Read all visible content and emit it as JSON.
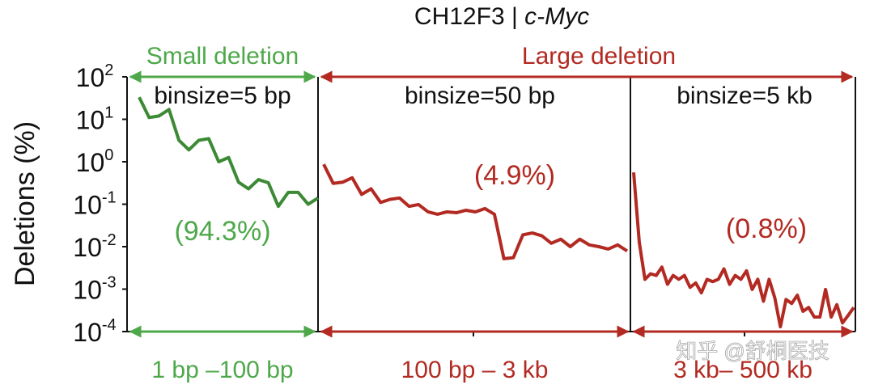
{
  "chart_data": {
    "type": "line",
    "title": "CH12F3 | ",
    "title_italic": "c-Myc",
    "ylabel": "Deletions (%)",
    "yscale": "log",
    "ylim": [
      0.0001,
      100
    ],
    "yticks": [
      {
        "base": "10",
        "exp": "2"
      },
      {
        "base": "10",
        "exp": "1"
      },
      {
        "base": "10",
        "exp": "0"
      },
      {
        "base": "10",
        "exp": "-1"
      },
      {
        "base": "10",
        "exp": "-2"
      },
      {
        "base": "10",
        "exp": "-3"
      },
      {
        "base": "10",
        "exp": "-4"
      }
    ],
    "colors": {
      "small": "#4ea84a",
      "large": "#b22a22",
      "green_line": "#3d8a35"
    },
    "categories_top": {
      "small": "Small deletion",
      "large": "Large deletion"
    },
    "watermark": "知乎 @舒桐医技",
    "panels": [
      {
        "binsize_label": "binsize=5 bp",
        "percent_label": "(94.3%)",
        "range_label": "1 bp –100 bp",
        "color": "#3d8a35",
        "values": [
          33,
          11,
          12,
          17,
          3.2,
          1.9,
          3.2,
          3.5,
          1.0,
          1.26,
          0.33,
          0.23,
          0.38,
          0.32,
          0.089,
          0.19,
          0.19,
          0.1,
          0.14
        ]
      },
      {
        "binsize_label": "binsize=50 bp",
        "percent_label": "(4.9%)",
        "range_label": "100 bp – 3 kb",
        "color": "#b22a22",
        "values": [
          0.87,
          0.31,
          0.33,
          0.42,
          0.17,
          0.23,
          0.11,
          0.13,
          0.14,
          0.089,
          0.098,
          0.066,
          0.058,
          0.066,
          0.063,
          0.072,
          0.066,
          0.079,
          0.058,
          0.0052,
          0.0055,
          0.019,
          0.021,
          0.018,
          0.012,
          0.015,
          0.01,
          0.015,
          0.011,
          0.01,
          0.0088,
          0.011,
          0.0079
        ]
      },
      {
        "binsize_label": "binsize=5 kb",
        "percent_label": "(0.8%)",
        "range_label": "3 kb– 500 kb",
        "color": "#b22a22",
        "values": [
          0.56,
          0.0126,
          0.0017,
          0.0023,
          0.0021,
          0.0033,
          0.0013,
          0.0021,
          0.0017,
          0.0021,
          0.0011,
          0.0014,
          0.00082,
          0.0017,
          0.0015,
          0.0017,
          0.003,
          0.0013,
          0.0021,
          0.0017,
          0.0027,
          0.00098,
          0.0017,
          0.00052,
          0.0017,
          0.00063,
          0.00013,
          0.00057,
          0.00046,
          0.00072,
          0.0003,
          0.00037,
          0.00022,
          0.00022,
          0.00098,
          0.00022,
          0.00043,
          0.00016,
          0.00024,
          0.00037
        ]
      }
    ]
  }
}
